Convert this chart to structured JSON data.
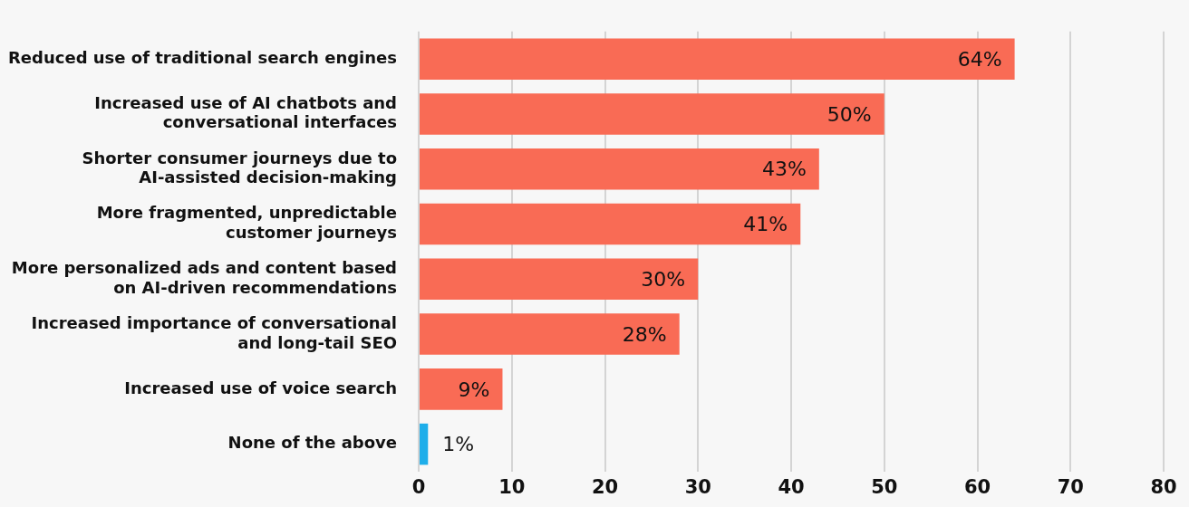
{
  "chart_data": {
    "type": "bar",
    "orientation": "horizontal",
    "categories": [
      "Reduced use of traditional search engines",
      "Increased use of AI chatbots and conversational interfaces",
      "Shorter consumer journeys due to AI-assisted decision-making",
      "More fragmented, unpredictable customer journeys",
      "More personalized ads and content based on AI-driven recommendations",
      "Increased importance of conversational and long-tail SEO",
      "Increased use of voice search",
      "None of the above"
    ],
    "values": [
      64,
      50,
      43,
      41,
      30,
      28,
      9,
      1
    ],
    "colors": [
      "#f96b55",
      "#f96b55",
      "#f96b55",
      "#f96b55",
      "#f96b55",
      "#f96b55",
      "#f96b55",
      "#1eaeea"
    ],
    "value_labels": [
      "64%",
      "50%",
      "43%",
      "41%",
      "30%",
      "28%",
      "9%",
      "1%"
    ],
    "xlim": [
      0,
      80
    ],
    "xticks": [
      0,
      10,
      20,
      30,
      40,
      50,
      60,
      70,
      80
    ],
    "grid": "x"
  }
}
